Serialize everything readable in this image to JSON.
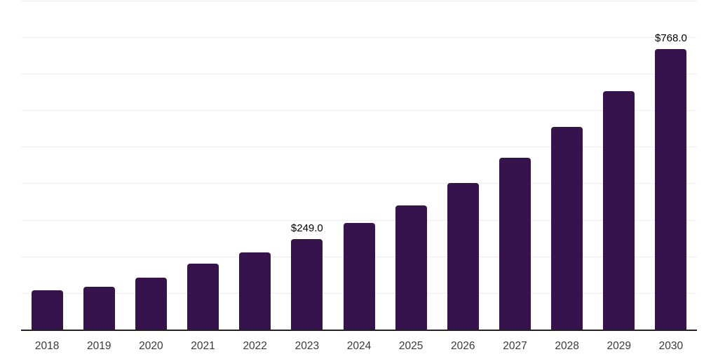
{
  "chart_data": {
    "type": "bar",
    "categories": [
      "2018",
      "2019",
      "2020",
      "2021",
      "2022",
      "2023",
      "2024",
      "2025",
      "2026",
      "2027",
      "2028",
      "2029",
      "2030"
    ],
    "values": [
      108,
      118,
      142,
      182,
      212,
      249,
      292,
      341,
      401,
      470,
      555,
      652,
      768
    ],
    "data_labels": [
      {
        "category": "2023",
        "text": "$249.0"
      },
      {
        "category": "2030",
        "text": "$768.0"
      }
    ],
    "title": "",
    "xlabel": "",
    "ylabel": "",
    "ylim": [
      0,
      900
    ],
    "grid": {
      "show": true,
      "interval": 100
    },
    "legend": "none",
    "colors": {
      "bar": "#36134D",
      "gridline": "#ededed",
      "axis_line": "#222222",
      "tick_label": "#3a3a3a",
      "value_label": "#000000",
      "background": "#ffffff"
    }
  }
}
